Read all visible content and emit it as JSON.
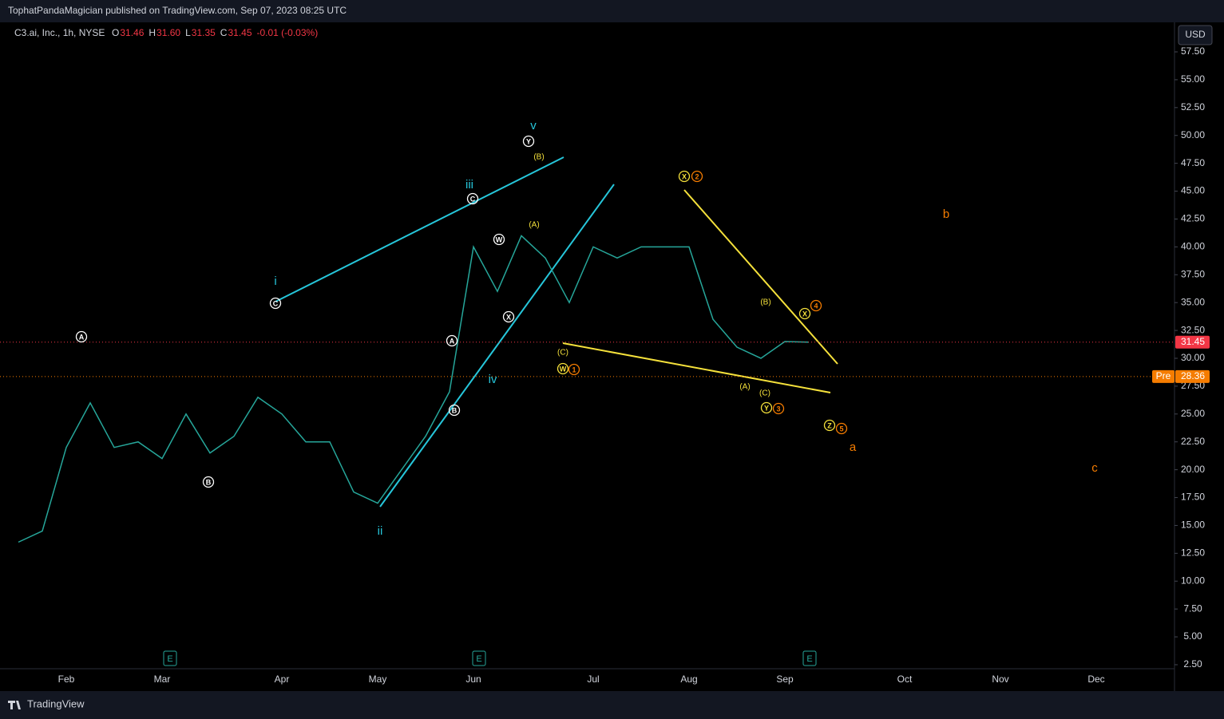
{
  "header": {
    "published": "TophatPandaMagician published on TradingView.com, Sep 07, 2023 08:25 UTC"
  },
  "chart_data": {
    "type": "line",
    "symbol": "C3.ai, Inc., 1h, NYSE",
    "ohlc": [
      {
        "label": "O",
        "value": "31.46"
      },
      {
        "label": "H",
        "value": "31.60"
      },
      {
        "label": "L",
        "value": "31.35"
      },
      {
        "label": "C",
        "value": "31.45"
      }
    ],
    "change": "-0.01 (-0.03%)",
    "currency": "USD",
    "color": "#26a69a",
    "categories": [
      null,
      null,
      "Feb",
      null,
      null,
      null,
      "Mar",
      null,
      null,
      null,
      null,
      "Apr",
      null,
      null,
      null,
      "May",
      null,
      null,
      null,
      "Jun",
      null,
      null,
      null,
      null,
      "Jul",
      null,
      null,
      null,
      "Aug",
      null,
      null,
      null,
      "Sep",
      null,
      null,
      null,
      null,
      "Oct",
      null,
      null,
      null,
      "Nov",
      null,
      null,
      null,
      "Dec",
      null,
      null,
      null
    ],
    "values": [
      13.5,
      14.5,
      22,
      26,
      22,
      22.5,
      21,
      25,
      21.5,
      23,
      26.5,
      25,
      22.5,
      22.5,
      18,
      17,
      20,
      23,
      27,
      40,
      36,
      41,
      39,
      35,
      40,
      39,
      40,
      40,
      40,
      33.5,
      31,
      30,
      31.5,
      31.45,
      null,
      null,
      null,
      null,
      null,
      null,
      null,
      null,
      null,
      null,
      null,
      null,
      null,
      null,
      null
    ],
    "ylim": [
      2.14,
      60.15
    ],
    "yticks": [
      {
        "value": 2.5,
        "label": "2.50"
      },
      {
        "value": 5,
        "label": "5.00"
      },
      {
        "value": 7.5,
        "label": "7.50"
      },
      {
        "value": 10,
        "label": "10.00"
      },
      {
        "value": 12.5,
        "label": "12.50"
      },
      {
        "value": 15,
        "label": "15.00"
      },
      {
        "value": 17.5,
        "label": "17.50"
      },
      {
        "value": 20,
        "label": "20.00"
      },
      {
        "value": 22.5,
        "label": "22.50"
      },
      {
        "value": 25,
        "label": "25.00"
      },
      {
        "value": 27.5,
        "label": "27.50"
      },
      {
        "value": 30,
        "label": "30.00"
      },
      {
        "value": 32.5,
        "label": "32.50"
      },
      {
        "value": 35,
        "label": "35.00"
      },
      {
        "value": 37.5,
        "label": "37.50"
      },
      {
        "value": 40,
        "label": "40.00"
      },
      {
        "value": 42.5,
        "label": "42.50"
      },
      {
        "value": 45,
        "label": "45.00"
      },
      {
        "value": 47.5,
        "label": "47.50"
      },
      {
        "value": 50,
        "label": "50.00"
      },
      {
        "value": 52.5,
        "label": "52.50"
      },
      {
        "value": 55,
        "label": "55.00"
      },
      {
        "value": 57.5,
        "label": "57.50"
      }
    ],
    "grid": false,
    "last_price": {
      "value": 31.45,
      "label": "31.45",
      "color": "#f23645"
    },
    "pre_market": {
      "name": "Pre",
      "value": 28.36,
      "label": "28.36",
      "color": "#f57c00"
    },
    "earnings": [
      "E",
      "E",
      "E"
    ],
    "blue_labels": [
      "i",
      "ii",
      "iii",
      "iv",
      "v"
    ],
    "orange_labels": [
      "a",
      "b",
      "c"
    ],
    "yellow_labels": [
      "(B)",
      "(A)",
      "(C)",
      "(B)",
      "(A)",
      "(C)"
    ],
    "white_circles": [
      "A",
      "B",
      "C",
      "A",
      "B",
      "C",
      "W",
      "X",
      "Y"
    ],
    "yellow_circles": [
      "X",
      "W",
      "X",
      "Y",
      "Z"
    ],
    "orange_circles": [
      "2",
      "1",
      "4",
      "3",
      "5"
    ]
  },
  "footer": {
    "brand": "TradingView"
  }
}
